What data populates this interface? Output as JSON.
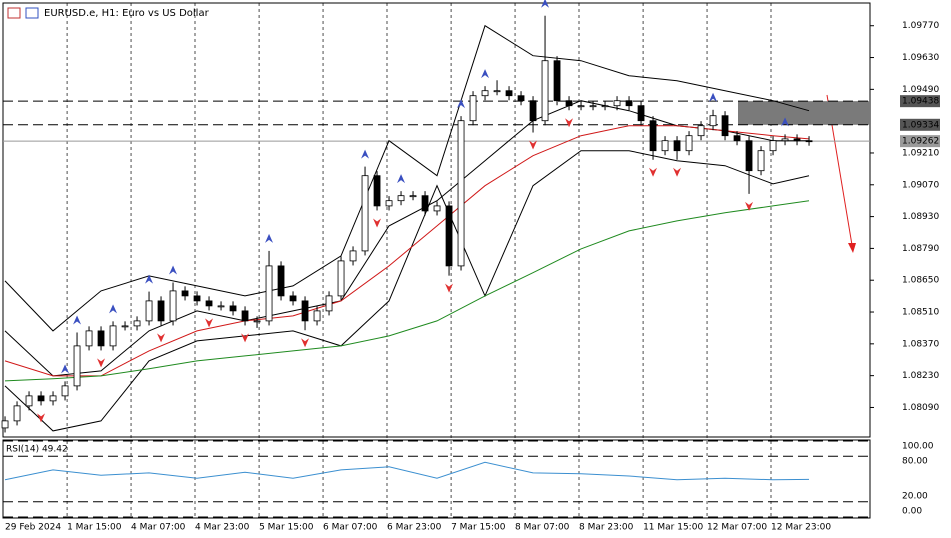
{
  "chart_data": {
    "type": "candlestick",
    "title": "EURUSD.e, H1:  Euro vs US Dollar",
    "open": [
      1.08,
      1.08031,
      1.08097,
      1.08141,
      1.08119,
      1.08141,
      1.08185,
      1.08361,
      1.08427,
      1.08361,
      1.08449,
      1.08449,
      1.08471,
      1.08559,
      1.08471,
      1.08603,
      1.08581,
      1.08559,
      1.08537,
      1.08537,
      1.08515,
      1.08471,
      1.08471,
      1.08713,
      1.08581,
      1.08559,
      1.08471,
      1.08515,
      1.08581,
      1.08735,
      1.08779,
      1.0911,
      1.08977,
      1.09,
      1.09022,
      1.09022,
      1.08955,
      1.08977,
      1.08713,
      1.09352,
      1.09462,
      1.09484,
      1.09484,
      1.09462,
      1.0944,
      1.09352,
      1.09616,
      1.0944,
      1.09418,
      1.09418,
      1.09418,
      1.09418,
      1.0944,
      1.09418,
      1.09352,
      1.0922,
      1.09264,
      1.0922,
      1.09286,
      1.0933,
      1.09374,
      1.09286,
      1.09264,
      1.09132,
      1.0922,
      1.09264,
      1.09272,
      1.09264
    ],
    "high": [
      1.08051,
      1.08117,
      1.08161,
      1.08161,
      1.08161,
      1.08205,
      1.0842,
      1.08447,
      1.08447,
      1.08469,
      1.08469,
      1.08491,
      1.086,
      1.08579,
      1.0864,
      1.08623,
      1.08601,
      1.08579,
      1.08557,
      1.08557,
      1.08535,
      1.08491,
      1.08779,
      1.08733,
      1.08601,
      1.08579,
      1.08535,
      1.08601,
      1.08755,
      1.08799,
      1.0915,
      1.0913,
      1.0902,
      1.09042,
      1.09042,
      1.09042,
      1.08997,
      1.08997,
      1.09372,
      1.09482,
      1.09504,
      1.0953,
      1.09504,
      1.09482,
      1.0946,
      1.09814,
      1.09636,
      1.0946,
      1.09438,
      1.09438,
      1.09438,
      1.0946,
      1.0946,
      1.09438,
      1.09372,
      1.09284,
      1.09284,
      1.09306,
      1.0935,
      1.094,
      1.09394,
      1.09306,
      1.09284,
      1.0924,
      1.09284,
      1.09292,
      1.09292,
      1.09284
    ],
    "low": [
      1.0798,
      1.08011,
      1.08077,
      1.08099,
      1.08099,
      1.08121,
      1.08165,
      1.08341,
      1.08341,
      1.08341,
      1.08429,
      1.08429,
      1.08451,
      1.08451,
      1.08451,
      1.08561,
      1.08539,
      1.08517,
      1.08517,
      1.08495,
      1.08451,
      1.0844,
      1.08451,
      1.08561,
      1.08539,
      1.0843,
      1.08451,
      1.08495,
      1.08561,
      1.08715,
      1.08759,
      1.08957,
      1.08957,
      1.0898,
      1.09002,
      1.08935,
      1.08935,
      1.0867,
      1.08693,
      1.09332,
      1.09442,
      1.09464,
      1.09442,
      1.0942,
      1.093,
      1.09332,
      1.0942,
      1.09398,
      1.09398,
      1.09398,
      1.09398,
      1.09398,
      1.09398,
      1.09332,
      1.0918,
      1.092,
      1.0918,
      1.092,
      1.09266,
      1.0931,
      1.09266,
      1.09244,
      1.0903,
      1.09112,
      1.092,
      1.09244,
      1.09244,
      1.09242
    ],
    "close": [
      1.08031,
      1.08097,
      1.08141,
      1.08119,
      1.08141,
      1.08185,
      1.08361,
      1.08427,
      1.08361,
      1.08449,
      1.08449,
      1.08471,
      1.08559,
      1.08471,
      1.08603,
      1.08581,
      1.08559,
      1.08537,
      1.08537,
      1.08515,
      1.08471,
      1.08471,
      1.08713,
      1.08581,
      1.08559,
      1.08471,
      1.08515,
      1.08581,
      1.08735,
      1.08779,
      1.0911,
      1.08977,
      1.09,
      1.09022,
      1.09022,
      1.08955,
      1.08977,
      1.08713,
      1.09352,
      1.09462,
      1.09484,
      1.09484,
      1.09462,
      1.0944,
      1.09352,
      1.09616,
      1.0944,
      1.09418,
      1.09418,
      1.09418,
      1.09418,
      1.0944,
      1.09418,
      1.09352,
      1.0922,
      1.09264,
      1.0922,
      1.09286,
      1.0933,
      1.09374,
      1.09286,
      1.09264,
      1.09132,
      1.0922,
      1.09264,
      1.09272,
      1.09264,
      1.09262
    ],
    "xlim": [
      -0.17,
      72.08
    ],
    "xticks": [
      {
        "value": 0,
        "label": "29 Feb 2024"
      },
      {
        "value": 5.17,
        "label": "1 Mar 15:00"
      },
      {
        "value": 10.5,
        "label": "4 Mar 07:00"
      },
      {
        "value": 15.83,
        "label": "4 Mar 23:00"
      },
      {
        "value": 21.17,
        "label": "5 Mar 15:00"
      },
      {
        "value": 26.5,
        "label": "6 Mar 07:00"
      },
      {
        "value": 31.83,
        "label": "6 Mar 23:00"
      },
      {
        "value": 37.17,
        "label": "7 Mar 15:00"
      },
      {
        "value": 42.5,
        "label": "8 Mar 07:00"
      },
      {
        "value": 47.83,
        "label": "8 Mar 23:00"
      },
      {
        "value": 53.17,
        "label": "11 Mar 15:00"
      },
      {
        "value": 58.5,
        "label": "12 Mar 07:00"
      },
      {
        "value": 63.83,
        "label": "12 Mar 23:00"
      }
    ],
    "ylim": [
      1.0796,
      1.0987
    ],
    "yticks": [
      {
        "value": 1.0977,
        "label": "1.09770"
      },
      {
        "value": 1.0963,
        "label": "1.09630"
      },
      {
        "value": 1.0949,
        "label": "1.09490"
      },
      {
        "value": 1.0921,
        "label": "1.09210"
      },
      {
        "value": 1.0907,
        "label": "1.09070"
      },
      {
        "value": 1.0893,
        "label": "1.08930"
      },
      {
        "value": 1.0879,
        "label": "1.08790"
      },
      {
        "value": 1.0865,
        "label": "1.08650"
      },
      {
        "value": 1.0851,
        "label": "1.08510"
      },
      {
        "value": 1.0837,
        "label": "1.08370"
      },
      {
        "value": 1.0823,
        "label": "1.08230"
      },
      {
        "value": 1.0809,
        "label": "1.08090"
      }
    ],
    "levels": [
      {
        "value": 1.09438,
        "label": "1.09438"
      },
      {
        "value": 1.09334,
        "label": "1.09334"
      }
    ],
    "current_price": {
      "value": 1.09262,
      "label": "1.09262"
    },
    "indicators": [
      {
        "color": "#000000",
        "x": [
          0,
          4,
          8,
          12,
          16,
          20,
          24,
          28,
          32,
          36,
          40,
          44,
          48,
          52,
          56,
          60,
          64,
          67
        ],
        "values": [
          1.08647,
          1.08427,
          1.08603,
          1.08669,
          1.08625,
          1.08581,
          1.08625,
          1.08757,
          1.09264,
          1.0911,
          1.0977,
          1.09638,
          1.09616,
          1.0955,
          1.09528,
          1.09484,
          1.0944,
          1.09396
        ]
      },
      {
        "color": "#000000",
        "x": [
          0,
          4,
          8,
          12,
          16,
          20,
          24,
          28,
          32,
          36,
          40,
          44,
          48,
          52,
          56,
          60,
          64,
          67
        ],
        "values": [
          1.08185,
          1.07987,
          1.08031,
          1.08295,
          1.08383,
          1.08405,
          1.08427,
          1.08361,
          1.08559,
          1.09066,
          1.08581,
          1.09066,
          1.0922,
          1.0922,
          1.09176,
          1.09154,
          1.09074,
          1.0911
        ]
      },
      {
        "color": "#000000",
        "x": [
          0,
          4,
          8,
          12,
          16,
          20,
          24,
          28,
          32,
          36,
          40,
          44,
          48,
          52,
          56,
          60,
          64,
          67
        ],
        "values": [
          1.08427,
          1.08229,
          1.08251,
          1.08427,
          1.08515,
          1.08471,
          1.08515,
          1.08559,
          1.08889,
          1.09,
          1.09176,
          1.09352,
          1.0944,
          1.09396,
          1.0933,
          1.09308,
          1.09264,
          1.09264
        ]
      },
      {
        "color": "#d01818",
        "x": [
          0,
          4,
          8,
          12,
          16,
          20,
          24,
          28,
          32,
          36,
          40,
          44,
          48,
          52,
          56,
          60,
          64,
          67
        ],
        "values": [
          1.08295,
          1.08229,
          1.08229,
          1.08339,
          1.08427,
          1.08471,
          1.08493,
          1.08559,
          1.08713,
          1.08889,
          1.09066,
          1.09198,
          1.09286,
          1.0933,
          1.0933,
          1.09308,
          1.09286,
          1.09272
        ]
      },
      {
        "color": "#1f8a1f",
        "x": [
          0,
          4,
          8,
          12,
          16,
          20,
          24,
          28,
          32,
          36,
          40,
          44,
          48,
          52,
          56,
          60,
          64,
          67
        ],
        "values": [
          1.08207,
          1.08216,
          1.08229,
          1.0826,
          1.08295,
          1.08317,
          1.08339,
          1.08361,
          1.08405,
          1.08471,
          1.08581,
          1.08683,
          1.08788,
          1.08867,
          1.08911,
          1.08947,
          1.08977,
          1.09
        ]
      }
    ],
    "signals": {
      "up": [
        5,
        6,
        9,
        12,
        14,
        22,
        30,
        33,
        38,
        40,
        45,
        59,
        65
      ],
      "down": [
        3,
        8,
        13,
        17,
        20,
        25,
        31,
        37,
        44,
        47,
        54,
        56,
        62
      ]
    },
    "rsi": {
      "label": "RSI(14) 49.42",
      "color": "#3b8fd0",
      "x": [
        0,
        4,
        8,
        12,
        16,
        20,
        24,
        28,
        32,
        36,
        40,
        44,
        48,
        52,
        56,
        60,
        64,
        67
      ],
      "values": [
        49,
        62,
        55,
        58,
        51,
        59,
        51,
        62,
        66,
        51,
        72,
        58,
        57,
        54,
        49,
        51,
        49,
        49.42
      ],
      "ylim": [
        0,
        100
      ],
      "yticks": [
        {
          "value": 100,
          "label": "100.00"
        },
        {
          "value": 80,
          "label": "80.00"
        },
        {
          "value": 20,
          "label": "20.00"
        },
        {
          "value": 0,
          "label": "0.00"
        }
      ]
    }
  }
}
